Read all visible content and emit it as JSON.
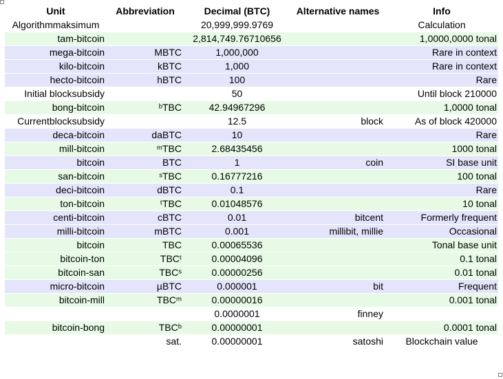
{
  "headers": [
    "Unit",
    "Abbreviation",
    "Decimal (BTC)",
    "Alternative names",
    "Info"
  ],
  "rows": [
    {
      "unit": "Algorithmmaksimum",
      "abbr": "",
      "dec": "20,999,999.9769",
      "alt": "",
      "info": "Calculation",
      "style": "white",
      "unitAlign": "center",
      "decAlign": "center",
      "infoAlign": "center"
    },
    {
      "unit": "tam-bitcoin",
      "abbr": "",
      "dec": "2,814,749.76710656",
      "alt": "",
      "info": "1,0000,0000 tonal",
      "style": "green"
    },
    {
      "unit": "mega-bitcoin",
      "abbr": "MBTC",
      "dec": "1,000,000",
      "alt": "",
      "info": "Rare in context",
      "style": "blue"
    },
    {
      "unit": "kilo-bitcoin",
      "abbr": "kBTC",
      "dec": "1,000",
      "alt": "",
      "info": "Rare in context",
      "style": "blue"
    },
    {
      "unit": "hecto-bitcoin",
      "abbr": "hBTC",
      "dec": "100",
      "alt": "",
      "info": "Rare",
      "style": "blue"
    },
    {
      "unit": "Initial blocksubsidy",
      "abbr": "",
      "dec": "50",
      "alt": "",
      "info": "Until block 210000",
      "style": "white"
    },
    {
      "unit": "bong-bitcoin",
      "abbr": "ᵇTBC",
      "dec": "42.94967296",
      "alt": "",
      "info": "1,0000 tonal",
      "style": "green"
    },
    {
      "unit": "Currentblocksubsidy",
      "abbr": "",
      "dec": "12.5",
      "alt": "block",
      "info": "As of block 420000",
      "style": "white"
    },
    {
      "unit": "deca-bitcoin",
      "abbr": "daBTC",
      "dec": "10",
      "alt": "",
      "info": "Rare",
      "style": "blue"
    },
    {
      "unit": "mill-bitcoin",
      "abbr": "ᵐTBC",
      "dec": "2.68435456",
      "alt": "",
      "info": "1000 tonal",
      "style": "green"
    },
    {
      "unit": "bitcoin",
      "abbr": "BTC",
      "dec": "1",
      "alt": "coin",
      "info": "SI base unit",
      "style": "blue"
    },
    {
      "unit": "san-bitcoin",
      "abbr": "ˢTBC",
      "dec": "0.16777216",
      "alt": "",
      "info": "100 tonal",
      "style": "green"
    },
    {
      "unit": "deci-bitcoin",
      "abbr": "dBTC",
      "dec": "0.1",
      "alt": "",
      "info": "Rare",
      "style": "blue"
    },
    {
      "unit": "ton-bitcoin",
      "abbr": "ᵗTBC",
      "dec": "0.01048576",
      "alt": "",
      "info": "10 tonal",
      "style": "green"
    },
    {
      "unit": "centi-bitcoin",
      "abbr": "cBTC",
      "dec": "0.01",
      "alt": "bitcent",
      "info": "Formerly frequent",
      "style": "blue"
    },
    {
      "unit": "milli-bitcoin",
      "abbr": "mBTC",
      "dec": "0.001",
      "alt": "millibit, millie",
      "info": "Occasional",
      "style": "blue"
    },
    {
      "unit": "bitcoin",
      "abbr": "TBC",
      "dec": "0.00065536",
      "alt": "",
      "info": "Tonal base unit",
      "style": "green"
    },
    {
      "unit": "bitcoin-ton",
      "abbr": "TBCᵗ",
      "dec": "0.00004096",
      "alt": "",
      "info": "0.1 tonal",
      "style": "green"
    },
    {
      "unit": "bitcoin-san",
      "abbr": "TBCˢ",
      "dec": "0.00000256",
      "alt": "",
      "info": "0.01 tonal",
      "style": "green"
    },
    {
      "unit": "micro-bitcoin",
      "abbr": "µBTC",
      "dec": "0.000001",
      "alt": "bit",
      "info": "Frequent",
      "style": "blue"
    },
    {
      "unit": "bitcoin-mill",
      "abbr": "TBCᵐ",
      "dec": "0.00000016",
      "alt": "",
      "info": "0.001 tonal",
      "style": "green"
    },
    {
      "unit": "",
      "abbr": "",
      "dec": "0.0000001",
      "alt": "finney",
      "info": "",
      "style": "white"
    },
    {
      "unit": "bitcoin-bong",
      "abbr": "TBCᵇ",
      "dec": "0.00000001",
      "alt": "",
      "info": "0.0001 tonal",
      "style": "green"
    },
    {
      "unit": "",
      "abbr": "sat.",
      "dec": "0.00000001",
      "alt": "satoshi",
      "info": "Blockchain value",
      "style": "white",
      "infoAlign": "center"
    }
  ]
}
